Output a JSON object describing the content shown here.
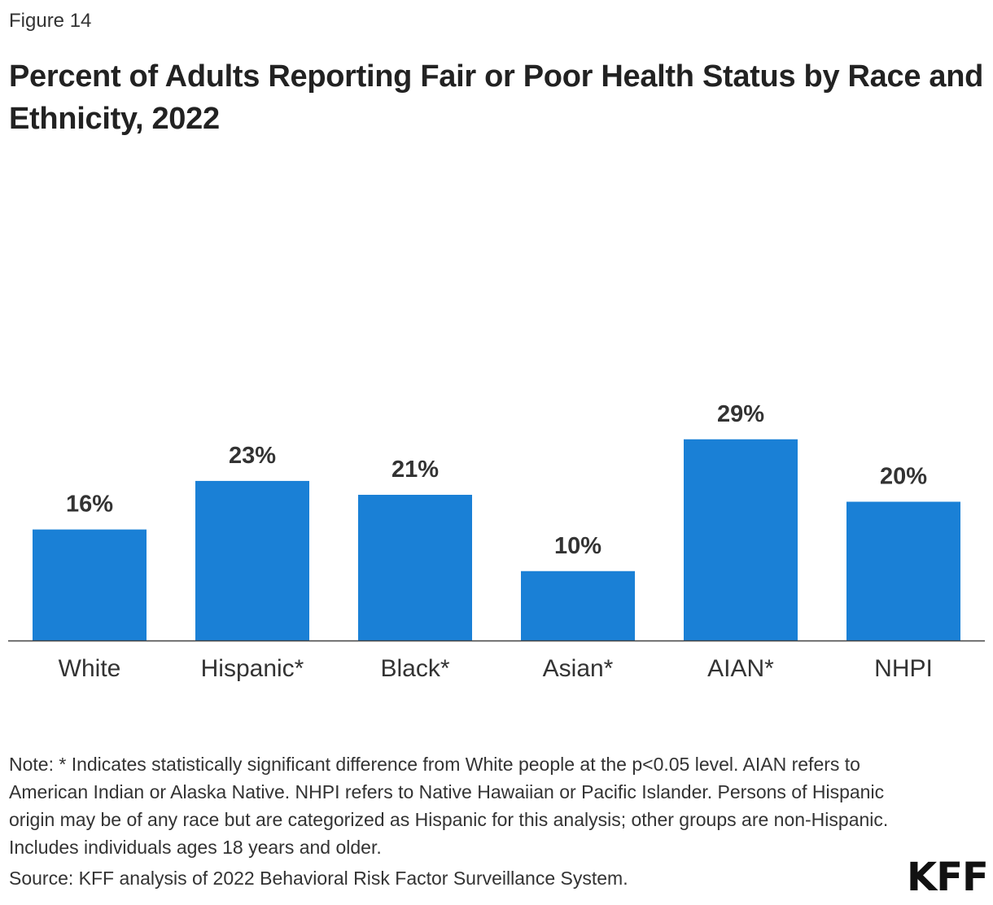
{
  "figure_label": "Figure 14",
  "chart_data": {
    "type": "bar",
    "title": "Percent of Adults Reporting Fair or Poor Health Status by Race and Ethnicity, 2022",
    "categories": [
      "White",
      "Hispanic*",
      "Black*",
      "Asian*",
      "AIAN*",
      "NHPI"
    ],
    "values": [
      16,
      23,
      21,
      10,
      29,
      20
    ],
    "data_labels": [
      "16%",
      "23%",
      "21%",
      "10%",
      "29%",
      "20%"
    ],
    "xlabel": "",
    "ylabel": "",
    "ylim": [
      0,
      40
    ],
    "grid": false,
    "bar_color": "#1a80d6"
  },
  "note": "Note: * Indicates statistically significant difference from White people at the p<0.05 level. AIAN refers to American Indian or Alaska Native. NHPI refers to Native Hawaiian or Pacific Islander. Persons of Hispanic origin may be of any race but are categorized as Hispanic for this analysis; other groups are non-Hispanic. Includes individuals ages 18 years and older.",
  "source": "Source: KFF analysis of 2022 Behavioral Risk Factor Surveillance System.",
  "logo": "KFF"
}
